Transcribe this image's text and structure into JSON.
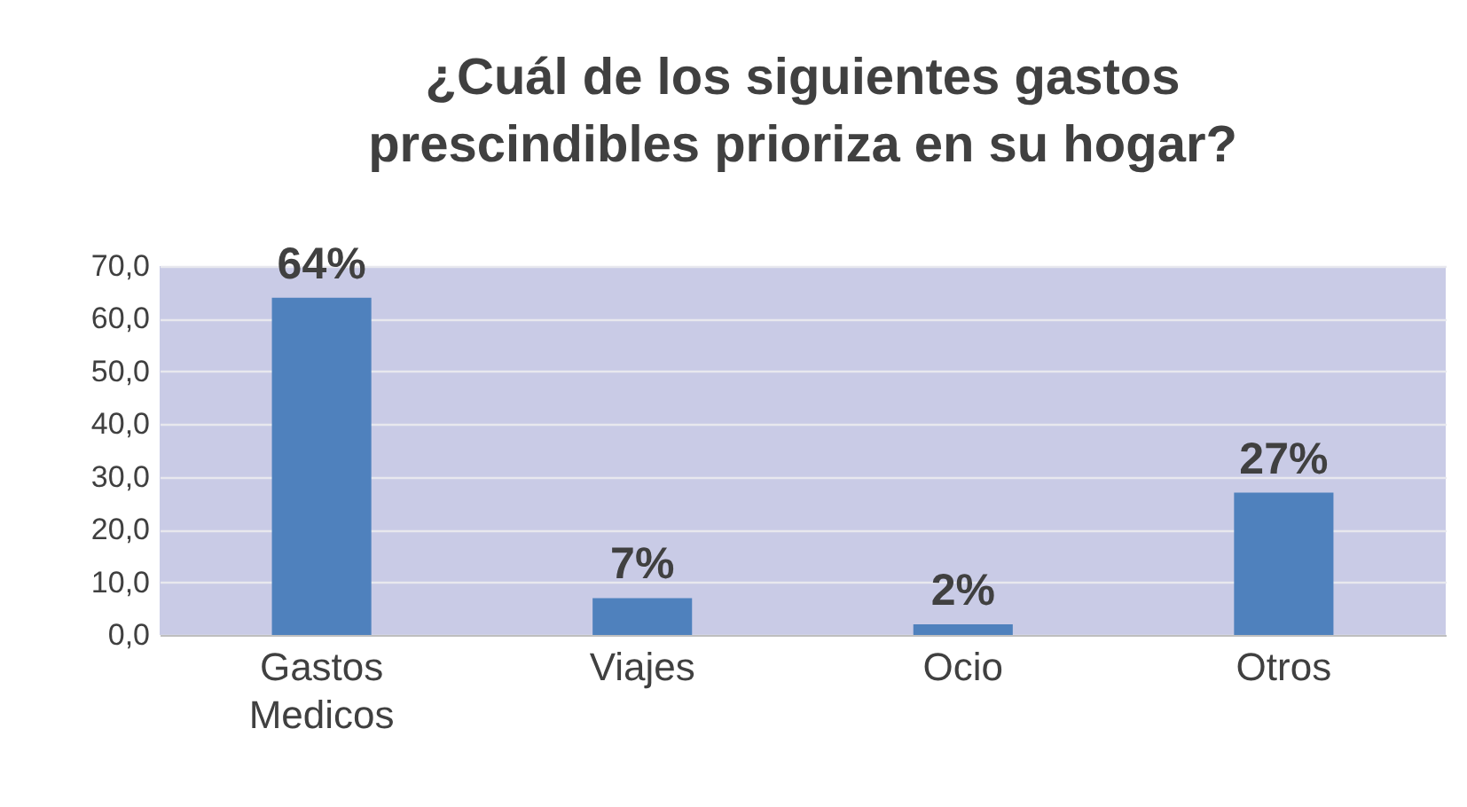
{
  "chart_data": {
    "type": "bar",
    "title": "¿Cuál de los  siguientes gastos\nprescindibles prioriza en su hogar?",
    "categories": [
      "Gastos Medicos",
      "Viajes",
      "Ocio",
      "Otros"
    ],
    "values": [
      64,
      7,
      2,
      27
    ],
    "value_labels": [
      "64%",
      "7%",
      "2%",
      "27%"
    ],
    "color": "#4f81bd",
    "ylim": [
      0,
      70
    ],
    "yticks": [
      {
        "value": 0,
        "label": "0,0"
      },
      {
        "value": 10,
        "label": "10,0"
      },
      {
        "value": 20,
        "label": "20,0"
      },
      {
        "value": 30,
        "label": "30,0"
      },
      {
        "value": 40,
        "label": "40,0"
      },
      {
        "value": 50,
        "label": "50,0"
      },
      {
        "value": 60,
        "label": "60,0"
      },
      {
        "value": 70,
        "label": "70,0"
      }
    ],
    "grid": "y"
  }
}
